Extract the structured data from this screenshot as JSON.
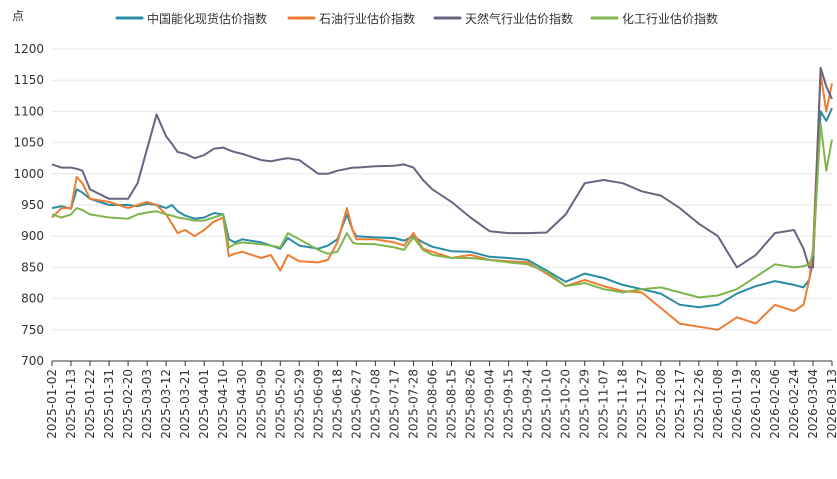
{
  "chart_data": {
    "type": "line",
    "unit_label": "点",
    "ylim": [
      700,
      1200
    ],
    "y_ticks": [
      700,
      750,
      800,
      850,
      900,
      950,
      1000,
      1050,
      1100,
      1150,
      1200
    ],
    "grid": "horizontal",
    "legend_position": "top",
    "x_labels": [
      "2025-01-02",
      "2025-01-13",
      "2025-01-22",
      "2025-01-31",
      "2025-02-20",
      "2025-03-03",
      "2025-03-12",
      "2025-03-21",
      "2025-04-01",
      "2025-04-10",
      "2025-04-30",
      "2025-05-09",
      "2025-05-20",
      "2025-05-29",
      "2025-06-09",
      "2025-06-18",
      "2025-06-27",
      "2025-07-08",
      "2025-07-17",
      "2025-07-28",
      "2025-08-06",
      "2025-08-15",
      "2025-08-26",
      "2025-09-04",
      "2025-09-15",
      "2025-09-24",
      "2025-10-10",
      "2025-10-20",
      "2025-10-29",
      "2025-11-07",
      "2025-11-18",
      "2025-11-27",
      "2025-12-08",
      "2025-12-17",
      "2025-12-26",
      "2026-01-08",
      "2026-01-19",
      "2026-01-28",
      "2026-02-06",
      "2026-02-24",
      "2026-03-04",
      "2026-03-13"
    ],
    "series": [
      {
        "name": "中国能化现货估价指数",
        "color": "#2a8ca6",
        "points": [
          [
            0,
            945
          ],
          [
            0.5,
            948
          ],
          [
            1,
            944
          ],
          [
            1.3,
            975
          ],
          [
            1.6,
            970
          ],
          [
            2,
            960
          ],
          [
            3,
            950
          ],
          [
            4,
            950
          ],
          [
            4.5,
            948
          ],
          [
            5,
            952
          ],
          [
            5.5,
            950
          ],
          [
            6,
            945
          ],
          [
            6.3,
            950
          ],
          [
            6.6,
            940
          ],
          [
            7,
            933
          ],
          [
            7.5,
            928
          ],
          [
            8,
            930
          ],
          [
            8.5,
            937
          ],
          [
            9,
            935
          ],
          [
            9.3,
            895
          ],
          [
            9.6,
            890
          ],
          [
            10,
            895
          ],
          [
            11,
            890
          ],
          [
            11.5,
            885
          ],
          [
            12,
            880
          ],
          [
            12.4,
            897
          ],
          [
            13,
            885
          ],
          [
            14,
            880
          ],
          [
            14.5,
            885
          ],
          [
            15,
            895
          ],
          [
            15.5,
            935
          ],
          [
            15.8,
            910
          ],
          [
            16,
            900
          ],
          [
            17,
            898
          ],
          [
            18,
            897
          ],
          [
            18.5,
            893
          ],
          [
            19,
            900
          ],
          [
            19.5,
            890
          ],
          [
            20,
            883
          ],
          [
            21,
            876
          ],
          [
            22,
            875
          ],
          [
            23,
            867
          ],
          [
            24,
            865
          ],
          [
            25,
            862
          ],
          [
            26,
            845
          ],
          [
            27,
            827
          ],
          [
            28,
            840
          ],
          [
            29,
            833
          ],
          [
            30,
            822
          ],
          [
            31,
            815
          ],
          [
            32,
            808
          ],
          [
            33,
            790
          ],
          [
            34,
            786
          ],
          [
            35,
            790
          ],
          [
            36,
            808
          ],
          [
            37,
            820
          ],
          [
            38,
            828
          ],
          [
            39,
            822
          ],
          [
            39.5,
            818
          ],
          [
            39.8,
            830
          ],
          [
            40,
            860
          ],
          [
            40.4,
            1100
          ],
          [
            40.7,
            1085
          ],
          [
            41,
            1105
          ]
        ]
      },
      {
        "name": "石油行业估价指数",
        "color": "#ee7d32",
        "points": [
          [
            0,
            930
          ],
          [
            0.5,
            945
          ],
          [
            1,
            945
          ],
          [
            1.3,
            995
          ],
          [
            1.6,
            985
          ],
          [
            2,
            960
          ],
          [
            3,
            955
          ],
          [
            4,
            945
          ],
          [
            4.5,
            950
          ],
          [
            5,
            955
          ],
          [
            5.5,
            950
          ],
          [
            6,
            935
          ],
          [
            6.3,
            920
          ],
          [
            6.6,
            905
          ],
          [
            7,
            910
          ],
          [
            7.5,
            900
          ],
          [
            8,
            910
          ],
          [
            8.5,
            923
          ],
          [
            9,
            930
          ],
          [
            9.3,
            868
          ],
          [
            9.6,
            872
          ],
          [
            10,
            875
          ],
          [
            11,
            865
          ],
          [
            11.5,
            870
          ],
          [
            12,
            845
          ],
          [
            12.4,
            870
          ],
          [
            13,
            860
          ],
          [
            14,
            858
          ],
          [
            14.5,
            862
          ],
          [
            15,
            890
          ],
          [
            15.5,
            945
          ],
          [
            15.8,
            910
          ],
          [
            16,
            895
          ],
          [
            17,
            895
          ],
          [
            18,
            890
          ],
          [
            18.5,
            885
          ],
          [
            19,
            905
          ],
          [
            19.5,
            880
          ],
          [
            20,
            875
          ],
          [
            21,
            865
          ],
          [
            22,
            870
          ],
          [
            23,
            862
          ],
          [
            24,
            860
          ],
          [
            25,
            858
          ],
          [
            26,
            840
          ],
          [
            27,
            820
          ],
          [
            28,
            830
          ],
          [
            29,
            820
          ],
          [
            30,
            812
          ],
          [
            31,
            810
          ],
          [
            32,
            785
          ],
          [
            33,
            760
          ],
          [
            34,
            755
          ],
          [
            35,
            750
          ],
          [
            36,
            770
          ],
          [
            37,
            760
          ],
          [
            38,
            790
          ],
          [
            39,
            780
          ],
          [
            39.5,
            790
          ],
          [
            39.8,
            830
          ],
          [
            40,
            880
          ],
          [
            40.4,
            1160
          ],
          [
            40.7,
            1100
          ],
          [
            41,
            1145
          ]
        ]
      },
      {
        "name": "天然气行业估价指数",
        "color": "#6a6381",
        "points": [
          [
            0,
            1015
          ],
          [
            0.5,
            1010
          ],
          [
            1,
            1010
          ],
          [
            1.3,
            1008
          ],
          [
            1.6,
            1005
          ],
          [
            2,
            975
          ],
          [
            3,
            960
          ],
          [
            4,
            960
          ],
          [
            4.5,
            985
          ],
          [
            5,
            1040
          ],
          [
            5.5,
            1095
          ],
          [
            6,
            1060
          ],
          [
            6.3,
            1048
          ],
          [
            6.6,
            1035
          ],
          [
            7,
            1032
          ],
          [
            7.5,
            1025
          ],
          [
            8,
            1030
          ],
          [
            8.5,
            1040
          ],
          [
            9,
            1042
          ],
          [
            9.3,
            1038
          ],
          [
            9.6,
            1035
          ],
          [
            10,
            1032
          ],
          [
            11,
            1022
          ],
          [
            11.5,
            1020
          ],
          [
            12,
            1023
          ],
          [
            12.4,
            1025
          ],
          [
            13,
            1022
          ],
          [
            14,
            1000
          ],
          [
            14.5,
            1000
          ],
          [
            15,
            1005
          ],
          [
            15.5,
            1008
          ],
          [
            15.8,
            1010
          ],
          [
            16,
            1010
          ],
          [
            17,
            1012
          ],
          [
            18,
            1013
          ],
          [
            18.5,
            1015
          ],
          [
            19,
            1010
          ],
          [
            19.5,
            990
          ],
          [
            20,
            975
          ],
          [
            21,
            955
          ],
          [
            22,
            930
          ],
          [
            23,
            908
          ],
          [
            24,
            905
          ],
          [
            25,
            905
          ],
          [
            26,
            906
          ],
          [
            27,
            935
          ],
          [
            28,
            985
          ],
          [
            29,
            990
          ],
          [
            30,
            985
          ],
          [
            31,
            972
          ],
          [
            32,
            965
          ],
          [
            33,
            945
          ],
          [
            34,
            920
          ],
          [
            35,
            900
          ],
          [
            36,
            850
          ],
          [
            37,
            870
          ],
          [
            38,
            905
          ],
          [
            39,
            910
          ],
          [
            39.5,
            880
          ],
          [
            39.8,
            850
          ],
          [
            40,
            850
          ],
          [
            40.4,
            1170
          ],
          [
            40.7,
            1140
          ],
          [
            41,
            1120
          ]
        ]
      },
      {
        "name": "化工行业估价指数",
        "color": "#7fb54c",
        "points": [
          [
            0,
            935
          ],
          [
            0.5,
            930
          ],
          [
            1,
            935
          ],
          [
            1.3,
            945
          ],
          [
            1.6,
            942
          ],
          [
            2,
            935
          ],
          [
            3,
            930
          ],
          [
            4,
            928
          ],
          [
            4.5,
            935
          ],
          [
            5,
            938
          ],
          [
            5.5,
            940
          ],
          [
            6,
            935
          ],
          [
            6.3,
            933
          ],
          [
            6.6,
            930
          ],
          [
            7,
            928
          ],
          [
            7.5,
            925
          ],
          [
            8,
            925
          ],
          [
            8.5,
            930
          ],
          [
            9,
            935
          ],
          [
            9.3,
            882
          ],
          [
            9.6,
            887
          ],
          [
            10,
            890
          ],
          [
            11,
            887
          ],
          [
            11.5,
            885
          ],
          [
            12,
            882
          ],
          [
            12.4,
            905
          ],
          [
            13,
            895
          ],
          [
            14,
            878
          ],
          [
            14.5,
            872
          ],
          [
            15,
            875
          ],
          [
            15.5,
            905
          ],
          [
            15.8,
            890
          ],
          [
            16,
            888
          ],
          [
            17,
            887
          ],
          [
            18,
            882
          ],
          [
            18.5,
            878
          ],
          [
            19,
            898
          ],
          [
            19.5,
            878
          ],
          [
            20,
            870
          ],
          [
            21,
            865
          ],
          [
            22,
            865
          ],
          [
            23,
            862
          ],
          [
            24,
            858
          ],
          [
            25,
            855
          ],
          [
            26,
            843
          ],
          [
            27,
            820
          ],
          [
            28,
            825
          ],
          [
            29,
            815
          ],
          [
            30,
            810
          ],
          [
            31,
            815
          ],
          [
            32,
            818
          ],
          [
            33,
            810
          ],
          [
            34,
            802
          ],
          [
            35,
            805
          ],
          [
            36,
            815
          ],
          [
            37,
            835
          ],
          [
            38,
            855
          ],
          [
            39,
            850
          ],
          [
            39.5,
            852
          ],
          [
            39.8,
            855
          ],
          [
            40,
            870
          ],
          [
            40.4,
            1080
          ],
          [
            40.7,
            1005
          ],
          [
            41,
            1055
          ]
        ]
      }
    ]
  }
}
